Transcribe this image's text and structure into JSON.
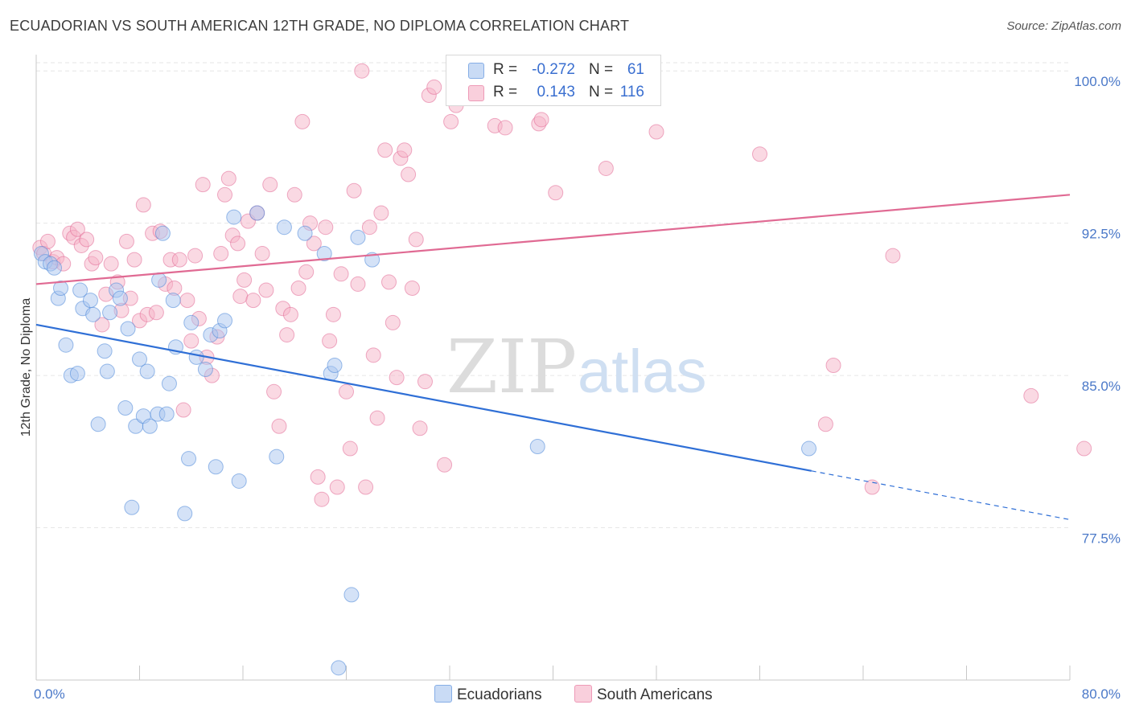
{
  "header": {
    "title": "ECUADORIAN VS SOUTH AMERICAN 12TH GRADE, NO DIPLOMA CORRELATION CHART",
    "source": "Source: ZipAtlas.com"
  },
  "watermark": {
    "zip": "ZIP",
    "atlas": "atlas"
  },
  "legend": {
    "rows": [
      {
        "r_label": "R =",
        "r_value": "-0.272",
        "n_label": "N =",
        "n_value": "61",
        "color": "#a9c6f0"
      },
      {
        "r_label": "R =",
        "r_value": "0.143",
        "n_label": "N =",
        "n_value": "116",
        "color": "#f5b3c8"
      }
    ]
  },
  "bottom_legend": {
    "items": [
      {
        "label": "Ecuadorians",
        "color": "#a9c6f0"
      },
      {
        "label": "South Americans",
        "color": "#f5b3c8"
      }
    ]
  },
  "chart_data": {
    "type": "scatter",
    "xlabel": "",
    "ylabel": "12th Grade, No Diploma",
    "xlim": [
      0,
      80
    ],
    "ylim": [
      70,
      100.8
    ],
    "x_tick_labels": [
      "0.0%",
      "80.0%"
    ],
    "y_ticks": [
      {
        "value": 100,
        "label": "100.0%"
      },
      {
        "value": 92.5,
        "label": "92.5%"
      },
      {
        "value": 85,
        "label": "85.0%"
      },
      {
        "value": 77.5,
        "label": "77.5%"
      }
    ],
    "grid": true,
    "series": [
      {
        "name": "Ecuadorians",
        "color": "#4a86d8",
        "fill": "#a9c6f0",
        "trend": {
          "x": [
            0,
            60
          ],
          "y": [
            87.5,
            80.3
          ],
          "dashed_to": [
            80,
            77.9
          ]
        },
        "points": [
          [
            0.4,
            91.0
          ],
          [
            0.7,
            90.6
          ],
          [
            1.1,
            90.5
          ],
          [
            1.4,
            90.3
          ],
          [
            1.7,
            88.8
          ],
          [
            1.9,
            89.3
          ],
          [
            2.3,
            86.5
          ],
          [
            2.7,
            85.0
          ],
          [
            3.2,
            85.1
          ],
          [
            3.4,
            89.2
          ],
          [
            3.6,
            88.3
          ],
          [
            4.2,
            88.7
          ],
          [
            4.4,
            88.0
          ],
          [
            4.8,
            82.6
          ],
          [
            5.3,
            86.2
          ],
          [
            5.5,
            85.2
          ],
          [
            5.7,
            88.1
          ],
          [
            6.2,
            89.2
          ],
          [
            6.5,
            88.8
          ],
          [
            6.9,
            83.4
          ],
          [
            7.1,
            87.3
          ],
          [
            7.4,
            78.5
          ],
          [
            7.7,
            82.5
          ],
          [
            8.0,
            85.8
          ],
          [
            8.3,
            83.0
          ],
          [
            8.6,
            85.2
          ],
          [
            8.8,
            82.5
          ],
          [
            9.4,
            83.1
          ],
          [
            9.5,
            89.7
          ],
          [
            9.8,
            92.0
          ],
          [
            10.1,
            83.1
          ],
          [
            10.3,
            84.6
          ],
          [
            10.6,
            88.7
          ],
          [
            10.8,
            86.4
          ],
          [
            11.5,
            78.2
          ],
          [
            11.8,
            80.9
          ],
          [
            12.0,
            87.6
          ],
          [
            12.4,
            85.9
          ],
          [
            13.1,
            85.3
          ],
          [
            13.5,
            87.0
          ],
          [
            13.9,
            80.5
          ],
          [
            14.2,
            87.2
          ],
          [
            14.6,
            87.7
          ],
          [
            15.3,
            92.8
          ],
          [
            15.7,
            79.8
          ],
          [
            17.1,
            93.0
          ],
          [
            18.6,
            81.0
          ],
          [
            19.2,
            92.3
          ],
          [
            20.8,
            92.0
          ],
          [
            22.3,
            91.0
          ],
          [
            22.8,
            85.1
          ],
          [
            23.1,
            85.5
          ],
          [
            23.4,
            70.6
          ],
          [
            24.4,
            74.2
          ],
          [
            24.9,
            91.8
          ],
          [
            26.0,
            90.7
          ],
          [
            38.8,
            81.5
          ],
          [
            59.8,
            81.4
          ]
        ]
      },
      {
        "name": "South Americans",
        "color": "#e26a96",
        "fill": "#f5b3c8",
        "trend": {
          "x": [
            0,
            80
          ],
          "y": [
            89.5,
            93.9
          ]
        },
        "points": [
          [
            0.3,
            91.3
          ],
          [
            0.6,
            91.0
          ],
          [
            0.9,
            91.6
          ],
          [
            1.3,
            90.6
          ],
          [
            1.6,
            90.8
          ],
          [
            2.1,
            90.5
          ],
          [
            2.6,
            92.0
          ],
          [
            2.9,
            91.8
          ],
          [
            3.2,
            92.2
          ],
          [
            3.5,
            91.4
          ],
          [
            3.9,
            91.7
          ],
          [
            4.3,
            90.5
          ],
          [
            4.6,
            90.8
          ],
          [
            5.1,
            87.5
          ],
          [
            5.4,
            89.0
          ],
          [
            5.8,
            90.5
          ],
          [
            6.3,
            89.6
          ],
          [
            6.6,
            88.2
          ],
          [
            7.0,
            91.6
          ],
          [
            7.3,
            88.8
          ],
          [
            7.6,
            90.7
          ],
          [
            8.0,
            87.7
          ],
          [
            8.3,
            93.4
          ],
          [
            8.6,
            88.0
          ],
          [
            9.0,
            92.0
          ],
          [
            9.3,
            88.1
          ],
          [
            9.6,
            92.1
          ],
          [
            10.0,
            89.5
          ],
          [
            10.4,
            90.7
          ],
          [
            10.7,
            89.3
          ],
          [
            11.1,
            90.7
          ],
          [
            11.4,
            83.3
          ],
          [
            11.7,
            88.7
          ],
          [
            12.0,
            86.7
          ],
          [
            12.3,
            90.9
          ],
          [
            12.6,
            87.8
          ],
          [
            12.9,
            94.4
          ],
          [
            13.2,
            85.9
          ],
          [
            13.6,
            85.0
          ],
          [
            14.0,
            86.9
          ],
          [
            14.3,
            91.0
          ],
          [
            14.6,
            93.9
          ],
          [
            14.9,
            94.7
          ],
          [
            15.2,
            91.9
          ],
          [
            15.6,
            91.5
          ],
          [
            15.8,
            88.9
          ],
          [
            16.1,
            89.7
          ],
          [
            16.4,
            92.6
          ],
          [
            16.8,
            88.7
          ],
          [
            17.1,
            93.0
          ],
          [
            17.5,
            91.0
          ],
          [
            17.8,
            89.2
          ],
          [
            18.1,
            94.4
          ],
          [
            18.4,
            84.2
          ],
          [
            18.8,
            82.5
          ],
          [
            19.1,
            88.3
          ],
          [
            19.4,
            87.0
          ],
          [
            19.7,
            88.0
          ],
          [
            20.0,
            93.9
          ],
          [
            20.3,
            89.3
          ],
          [
            20.6,
            97.5
          ],
          [
            20.9,
            90.1
          ],
          [
            21.2,
            92.5
          ],
          [
            21.5,
            91.5
          ],
          [
            21.8,
            80.0
          ],
          [
            22.1,
            78.9
          ],
          [
            22.4,
            92.3
          ],
          [
            22.7,
            86.7
          ],
          [
            23.0,
            88.0
          ],
          [
            23.3,
            79.5
          ],
          [
            23.6,
            90.0
          ],
          [
            24.0,
            84.2
          ],
          [
            24.3,
            81.4
          ],
          [
            24.6,
            94.1
          ],
          [
            24.9,
            89.5
          ],
          [
            25.2,
            100.0
          ],
          [
            25.5,
            79.5
          ],
          [
            25.8,
            92.3
          ],
          [
            26.1,
            86.0
          ],
          [
            26.4,
            82.9
          ],
          [
            26.7,
            93.0
          ],
          [
            27.0,
            96.1
          ],
          [
            27.3,
            89.6
          ],
          [
            27.6,
            87.6
          ],
          [
            27.9,
            84.9
          ],
          [
            28.2,
            95.7
          ],
          [
            28.5,
            96.1
          ],
          [
            28.8,
            94.9
          ],
          [
            29.1,
            89.3
          ],
          [
            29.4,
            91.7
          ],
          [
            29.7,
            82.4
          ],
          [
            30.1,
            84.7
          ],
          [
            30.4,
            98.8
          ],
          [
            30.8,
            99.2
          ],
          [
            31.6,
            80.6
          ],
          [
            32.1,
            97.5
          ],
          [
            32.5,
            98.3
          ],
          [
            33.0,
            100.0
          ],
          [
            35.0,
            99.3
          ],
          [
            35.5,
            97.3
          ],
          [
            36.3,
            97.2
          ],
          [
            37.5,
            100.0
          ],
          [
            38.9,
            97.4
          ],
          [
            39.1,
            97.6
          ],
          [
            40.2,
            94.0
          ],
          [
            44.1,
            95.2
          ],
          [
            48.0,
            97.0
          ],
          [
            56.0,
            95.9
          ],
          [
            61.1,
            82.6
          ],
          [
            61.7,
            85.5
          ],
          [
            64.7,
            79.5
          ],
          [
            66.3,
            90.9
          ],
          [
            81.1,
            81.4
          ],
          [
            77.0,
            84.0
          ]
        ]
      }
    ]
  }
}
